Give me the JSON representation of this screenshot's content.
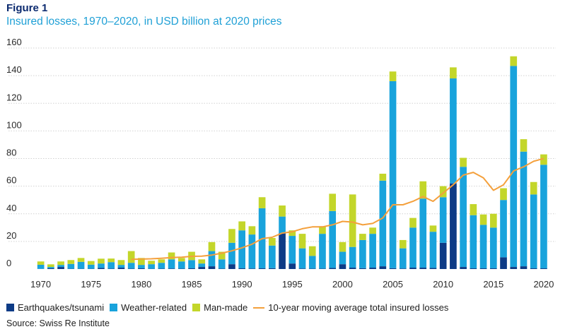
{
  "figure_label": "Figure 1",
  "colors": {
    "earthquake": "#0d3b86",
    "weather": "#19a3dc",
    "manmade": "#c3d62a",
    "moving_average": "#f4a03c",
    "grid": "#d2d2d2",
    "axis_text": "#2a2a2a"
  },
  "source": "Source: Swiss Re Institute",
  "chart_data": {
    "type": "bar",
    "stacked": true,
    "title": "Insured losses, 1970–2020, in USD billion at 2020 prices",
    "xlabel": "",
    "ylabel": "",
    "ylim": [
      0,
      160
    ],
    "yticks": [
      0,
      20,
      40,
      60,
      80,
      100,
      120,
      140,
      160
    ],
    "xticks": [
      1970,
      1975,
      1980,
      1985,
      1990,
      1995,
      2000,
      2005,
      2010,
      2015,
      2020
    ],
    "grid": true,
    "legend_position": "bottom",
    "categories": [
      1970,
      1971,
      1972,
      1973,
      1974,
      1975,
      1976,
      1977,
      1978,
      1979,
      1980,
      1981,
      1982,
      1983,
      1984,
      1985,
      1986,
      1987,
      1988,
      1989,
      1990,
      1991,
      1992,
      1993,
      1994,
      1995,
      1996,
      1997,
      1998,
      1999,
      2000,
      2001,
      2002,
      2003,
      2004,
      2005,
      2006,
      2007,
      2008,
      2009,
      2010,
      2011,
      2012,
      2013,
      2014,
      2015,
      2016,
      2017,
      2018,
      2019,
      2020
    ],
    "series": [
      {
        "name": "Earthquakes/tsunami",
        "kind": "bar",
        "values": [
          0.1,
          0.5,
          1.5,
          0.2,
          0.2,
          0.2,
          0.8,
          0.3,
          1.0,
          0.3,
          0.5,
          0.2,
          0.3,
          0.4,
          0.3,
          0.5,
          1.5,
          2.0,
          0.3,
          3.5,
          0.5,
          0.4,
          0.5,
          0.6,
          26.0,
          4.0,
          0.4,
          0.3,
          0.3,
          0.8,
          3.5,
          1.0,
          0.6,
          1.0,
          2.0,
          0.6,
          0.4,
          1.0,
          1.0,
          0.8,
          19.0,
          62.0,
          1.5,
          0.5,
          0.5,
          0.5,
          8.5,
          1.5,
          2.0,
          0.5,
          0.5
        ]
      },
      {
        "name": "Weather-related",
        "kind": "bar",
        "values": [
          3.0,
          1.0,
          1.5,
          3.5,
          5.0,
          3.0,
          3.2,
          4.7,
          2.0,
          4.2,
          2.5,
          3.3,
          4.2,
          6.6,
          5.2,
          6.0,
          2.5,
          11.0,
          6.7,
          15.5,
          27.5,
          24.6,
          43.5,
          16.4,
          12.0,
          20.0,
          14.6,
          9.2,
          25.2,
          41.2,
          9.0,
          15.0,
          20.4,
          24.5,
          62.0,
          135.4,
          14.6,
          29.0,
          50.0,
          26.2,
          33.0,
          76.0,
          72.5,
          38.5,
          31.5,
          29.5,
          41.5,
          145.5,
          83.0,
          53.5,
          75.0
        ]
      },
      {
        "name": "Man-made",
        "kind": "bar",
        "values": [
          2.4,
          1.9,
          2.5,
          2.8,
          2.8,
          2.6,
          3.5,
          2.6,
          3.5,
          8.5,
          5.0,
          2.5,
          2.5,
          5.0,
          2.5,
          6.0,
          3.0,
          6.5,
          5.5,
          10.0,
          6.5,
          6.0,
          8.0,
          5.5,
          8.0,
          4.0,
          10.5,
          7.0,
          5.5,
          12.5,
          7.0,
          38.0,
          4.5,
          4.5,
          5.0,
          7.0,
          6.0,
          7.0,
          12.5,
          4.5,
          8.0,
          8.0,
          6.5,
          8.0,
          7.5,
          10.0,
          8.5,
          7.0,
          9.0,
          9.0,
          7.5
        ]
      },
      {
        "name": "10-year moving average total insured losses",
        "kind": "line",
        "x": [
          1979,
          1980,
          1981,
          1982,
          1983,
          1984,
          1985,
          1986,
          1987,
          1988,
          1989,
          1990,
          1991,
          1992,
          1993,
          1994,
          1995,
          1996,
          1997,
          1998,
          1999,
          2000,
          2001,
          2002,
          2003,
          2004,
          2005,
          2006,
          2007,
          2008,
          2009,
          2010,
          2011,
          2012,
          2013,
          2014,
          2015,
          2016,
          2017,
          2018,
          2019,
          2020
        ],
        "values": [
          7.0,
          7.2,
          7.4,
          7.8,
          8.3,
          8.6,
          9.2,
          9.3,
          10.1,
          11.5,
          13.2,
          15.4,
          18.0,
          22.0,
          23.0,
          26.0,
          27.0,
          29.2,
          30.5,
          30.5,
          32.0,
          34.5,
          34.0,
          32.0,
          33.0,
          37.0,
          46.5,
          46.5,
          49.0,
          52.5,
          49.0,
          55.0,
          61.0,
          68.0,
          70.0,
          66.0,
          57.0,
          61.0,
          71.0,
          74.0,
          78.0,
          80.0
        ]
      }
    ]
  },
  "legend": [
    {
      "label": "Earthquakes/tsunami",
      "type": "swatch",
      "color": "#0d3b86"
    },
    {
      "label": "Weather-related",
      "type": "swatch",
      "color": "#19a3dc"
    },
    {
      "label": "Man-made",
      "type": "swatch",
      "color": "#c3d62a"
    },
    {
      "label": "10-year moving average total insured losses",
      "type": "line",
      "color": "#f4a03c"
    }
  ]
}
